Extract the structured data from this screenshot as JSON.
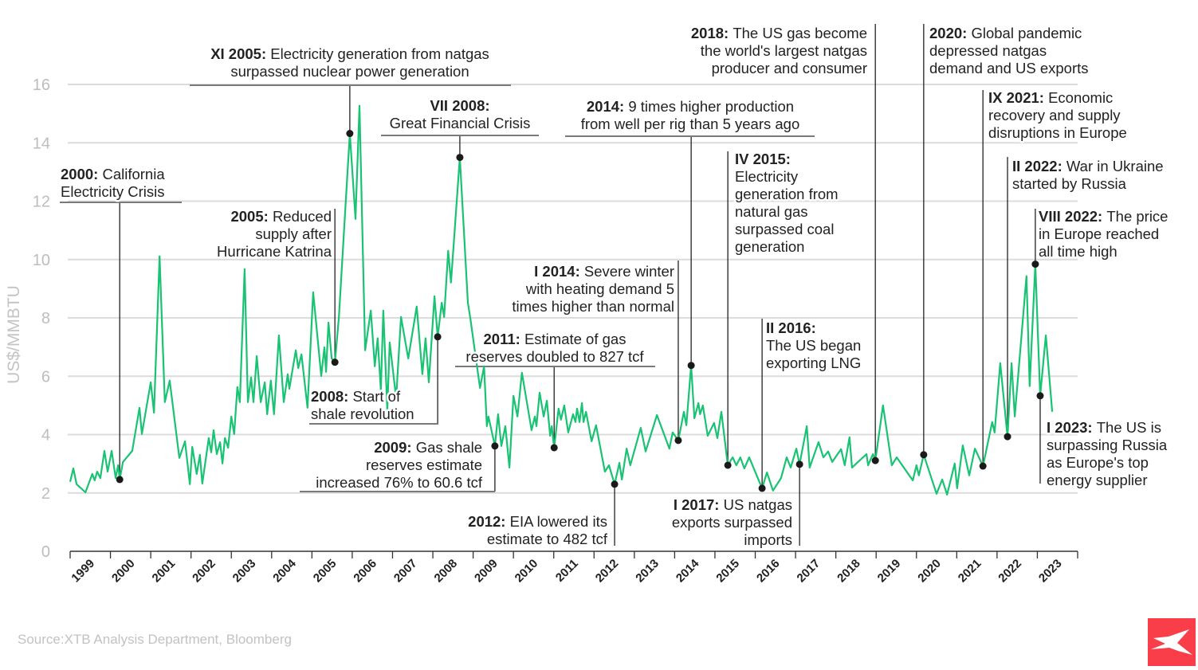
{
  "source": "Source:XTB Analysis Department, Bloomberg",
  "logo": {
    "name": "xtb-logo",
    "text": "XTB",
    "color": "#f93e4a"
  },
  "chart_data": {
    "type": "line",
    "ylabel": "US$/MMBTU",
    "xlabel": "",
    "ylim": [
      0,
      16
    ],
    "yticks": [
      0,
      2,
      4,
      6,
      8,
      10,
      12,
      14,
      16
    ],
    "xlim": [
      1999,
      2024
    ],
    "xticks": [
      "1999",
      "2000",
      "2001",
      "2002",
      "2003",
      "2004",
      "2005",
      "2006",
      "2007",
      "2008",
      "2009",
      "2010",
      "2011",
      "2012",
      "2013",
      "2014",
      "2015",
      "2016",
      "2017",
      "2018",
      "2019",
      "2020",
      "2021",
      "2022",
      "2023"
    ],
    "grid": true,
    "line_color": "#19c373",
    "series": [
      {
        "x": [
          1999.0,
          1999.08,
          1999.16,
          1999.38,
          1999.55,
          1999.61,
          1999.67,
          1999.75,
          1999.85,
          1999.93,
          2000.03,
          2000.13,
          2000.19,
          2000.23,
          2000.31,
          2000.54,
          2000.72,
          2000.78,
          2001.0,
          2001.08,
          2001.22,
          2001.35,
          2001.47,
          2001.71,
          2001.85,
          2001.97,
          2002.03,
          2002.14,
          2002.22,
          2002.28,
          2002.44,
          2002.5,
          2002.56,
          2002.64,
          2002.72,
          2002.78,
          2002.84,
          2002.92,
          2003.0,
          2003.07,
          2003.15,
          2003.21,
          2003.33,
          2003.41,
          2003.49,
          2003.55,
          2003.63,
          2003.73,
          2003.83,
          2003.89,
          2003.98,
          2004.06,
          2004.18,
          2004.3,
          2004.4,
          2004.44,
          2004.6,
          2004.66,
          2004.74,
          2004.89,
          2005.03,
          2005.23,
          2005.31,
          2005.35,
          2005.41,
          2005.49,
          2005.57,
          2005.67,
          2005.82,
          2005.94,
          2006.08,
          2006.18,
          2006.32,
          2006.46,
          2006.56,
          2006.63,
          2006.71,
          2006.77,
          2006.87,
          2006.93,
          2007.09,
          2007.21,
          2007.39,
          2007.6,
          2007.74,
          2007.82,
          2007.9,
          2008.04,
          2008.12,
          2008.22,
          2008.28,
          2008.38,
          2008.45,
          2008.67,
          2008.87,
          2008.93,
          2009.17,
          2009.27,
          2009.34,
          2009.38,
          2009.54,
          2009.62,
          2009.7,
          2009.8,
          2009.9,
          2010.0,
          2010.1,
          2010.21,
          2010.45,
          2010.53,
          2010.57,
          2010.65,
          2010.75,
          2010.83,
          2010.91,
          2010.95,
          2011.01,
          2011.12,
          2011.18,
          2011.26,
          2011.36,
          2011.48,
          2011.54,
          2011.58,
          2011.64,
          2011.7,
          2011.74,
          2011.8,
          2011.94,
          2012.05,
          2012.27,
          2012.37,
          2012.51,
          2012.63,
          2012.69,
          2012.81,
          2012.9,
          2013.16,
          2013.28,
          2013.56,
          2013.87,
          2013.95,
          2014.09,
          2014.23,
          2014.29,
          2014.41,
          2014.49,
          2014.59,
          2014.63,
          2014.7,
          2014.82,
          2014.98,
          2015.06,
          2015.16,
          2015.32,
          2015.44,
          2015.53,
          2015.63,
          2015.73,
          2015.85,
          2016.17,
          2016.29,
          2016.44,
          2016.64,
          2016.78,
          2016.88,
          2017.02,
          2017.1,
          2017.28,
          2017.35,
          2017.57,
          2017.69,
          2017.81,
          2017.91,
          2018.13,
          2018.22,
          2018.34,
          2018.4,
          2018.76,
          2018.8,
          2018.92,
          2018.98,
          2019.17,
          2019.39,
          2019.51,
          2019.91,
          2020.0,
          2020.06,
          2020.18,
          2020.5,
          2020.64,
          2020.76,
          2020.95,
          2021.01,
          2021.15,
          2021.31,
          2021.45,
          2021.65,
          2021.88,
          2021.94,
          2022.08,
          2022.26,
          2022.36,
          2022.44,
          2022.73,
          2022.81,
          2022.95,
          2023.07,
          2023.21,
          2023.37
        ],
        "y": [
          2.38,
          2.84,
          2.3,
          2.02,
          2.65,
          2.43,
          2.73,
          2.51,
          3.44,
          2.73,
          3.44,
          2.51,
          2.95,
          2.46,
          3.06,
          3.44,
          4.92,
          4.02,
          5.79,
          4.75,
          10.11,
          5.11,
          5.85,
          3.2,
          3.77,
          2.3,
          3.58,
          2.65,
          3.31,
          2.32,
          3.88,
          3.39,
          4.15,
          3.33,
          3.74,
          3.01,
          3.88,
          3.55,
          4.62,
          4.02,
          5.63,
          5.11,
          9.67,
          5.11,
          5.96,
          5.11,
          6.69,
          5.11,
          5.79,
          4.7,
          5.85,
          4.7,
          7.4,
          5.11,
          6.07,
          5.57,
          6.89,
          6.28,
          6.75,
          4.92,
          8.88,
          6.01,
          6.99,
          6.15,
          7.84,
          6.61,
          6.48,
          8.03,
          11.53,
          14.32,
          11.39,
          15.27,
          6.89,
          8.25,
          6.34,
          7.3,
          5.52,
          8.25,
          4.84,
          7.16,
          5.25,
          8.03,
          6.61,
          8.39,
          6.07,
          7.3,
          5.79,
          8.74,
          7.35,
          8.52,
          8.03,
          10.3,
          9.21,
          13.5,
          8.52,
          7.98,
          5.6,
          6.34,
          4.29,
          4.62,
          3.61,
          4.7,
          3.61,
          4.29,
          2.87,
          5.33,
          4.62,
          6.12,
          4.15,
          4.62,
          4.29,
          5.44,
          4.62,
          5.16,
          3.96,
          4.29,
          3.55,
          4.89,
          4.51,
          5.0,
          4.07,
          4.7,
          4.43,
          4.89,
          4.43,
          5.08,
          4.43,
          4.78,
          3.77,
          4.32,
          2.73,
          2.95,
          2.3,
          3.03,
          2.46,
          3.52,
          2.95,
          4.23,
          3.42,
          4.67,
          3.52,
          4.07,
          3.8,
          4.78,
          4.32,
          6.37,
          4.56,
          5.08,
          4.7,
          5.0,
          3.96,
          4.4,
          3.88,
          4.78,
          2.95,
          3.22,
          2.95,
          3.22,
          2.84,
          3.22,
          2.16,
          2.7,
          2.08,
          2.51,
          3.22,
          2.87,
          3.52,
          2.98,
          4.29,
          2.87,
          3.74,
          3.22,
          3.42,
          3.06,
          3.5,
          2.95,
          3.91,
          2.87,
          3.33,
          2.95,
          3.33,
          3.11,
          5.0,
          2.95,
          3.22,
          2.43,
          2.95,
          2.6,
          3.31,
          1.97,
          2.46,
          1.94,
          3.01,
          2.16,
          3.63,
          2.6,
          3.52,
          2.92,
          4.43,
          4.07,
          6.45,
          3.93,
          6.45,
          4.62,
          9.43,
          5.66,
          9.84,
          5.33,
          7.4,
          4.78
        ]
      }
    ],
    "annotations": [
      {
        "label": "2000:",
        "lines": [
          "California",
          "Electricity Crisis"
        ],
        "x": 2000.23,
        "y": 2.46
      },
      {
        "label": "XI 2005:",
        "lines": [
          "Electricity generation from natgas",
          "surpassed nuclear power generation"
        ],
        "x": 2005.94,
        "y": 14.32
      },
      {
        "label": "2005:",
        "lines": [
          "Reduced",
          "supply after",
          "Hurricane Katrina"
        ],
        "x": 2005.57,
        "y": 6.48
      },
      {
        "label": "VII 2008:",
        "lines": [
          "",
          "Great Financial Crisis"
        ],
        "x": 2008.67,
        "y": 13.5
      },
      {
        "label": "2008:",
        "lines": [
          "Start of",
          "shale revolution"
        ],
        "x": 2008.12,
        "y": 7.35
      },
      {
        "label": "2009:",
        "lines": [
          "Gas shale",
          "reserves estimate",
          "increased 76% to 60.6 tcf"
        ],
        "x": 2009.54,
        "y": 3.61
      },
      {
        "label": "2011:",
        "lines": [
          "Estimate of gas",
          "reserves doubled to 827 tcf"
        ],
        "x": 2011.01,
        "y": 3.55
      },
      {
        "label": "2012:",
        "lines": [
          "EIA lowered its",
          "estimate to 482 tcf"
        ],
        "x": 2012.51,
        "y": 2.3
      },
      {
        "label": "I 2014:",
        "lines": [
          "Severe winter",
          "with heating demand 5",
          "times higher than normal"
        ],
        "x": 2014.09,
        "y": 3.8
      },
      {
        "label": "2014:",
        "lines": [
          "9 times higher production",
          "from well per rig than 5 years ago"
        ],
        "x": 2014.41,
        "y": 6.37
      },
      {
        "label": "IV 2015:",
        "lines": [
          "",
          "Electricity",
          "generation from",
          "natural gas",
          "surpassed coal",
          "generation"
        ],
        "x": 2015.32,
        "y": 2.95
      },
      {
        "label": "II 2016:",
        "lines": [
          "",
          "The US began",
          "exporting LNG"
        ],
        "x": 2016.17,
        "y": 2.16
      },
      {
        "label": "I 2017:",
        "lines": [
          "US natgas",
          "exports surpassed",
          "imports"
        ],
        "x": 2017.1,
        "y": 2.98
      },
      {
        "label": "2018:",
        "lines": [
          "The US gas become",
          "the world's largest natgas",
          "producer and consumer"
        ],
        "x": 2018.98,
        "y": 3.11
      },
      {
        "label": "2020:",
        "lines": [
          "Global pandemic",
          "depressed natgas",
          "demand and US exports"
        ],
        "x": 2020.18,
        "y": 3.31
      },
      {
        "label": "IX 2021:",
        "lines": [
          "Economic",
          "recovery and supply",
          "disruptions in Europe"
        ],
        "x": 2021.65,
        "y": 2.92
      },
      {
        "label": "II 2022:",
        "lines": [
          "War in Ukraine",
          "started by Russia"
        ],
        "x": 2022.26,
        "y": 3.93
      },
      {
        "label": "VIII 2022:",
        "lines": [
          "The price",
          "in Europe reached",
          "all time high"
        ],
        "x": 2022.95,
        "y": 9.84
      },
      {
        "label": "I 2023:",
        "lines": [
          "The US is",
          "surpassing Russia",
          "as Europe's top",
          "energy supplier"
        ],
        "x": 2023.07,
        "y": 5.33
      }
    ]
  }
}
